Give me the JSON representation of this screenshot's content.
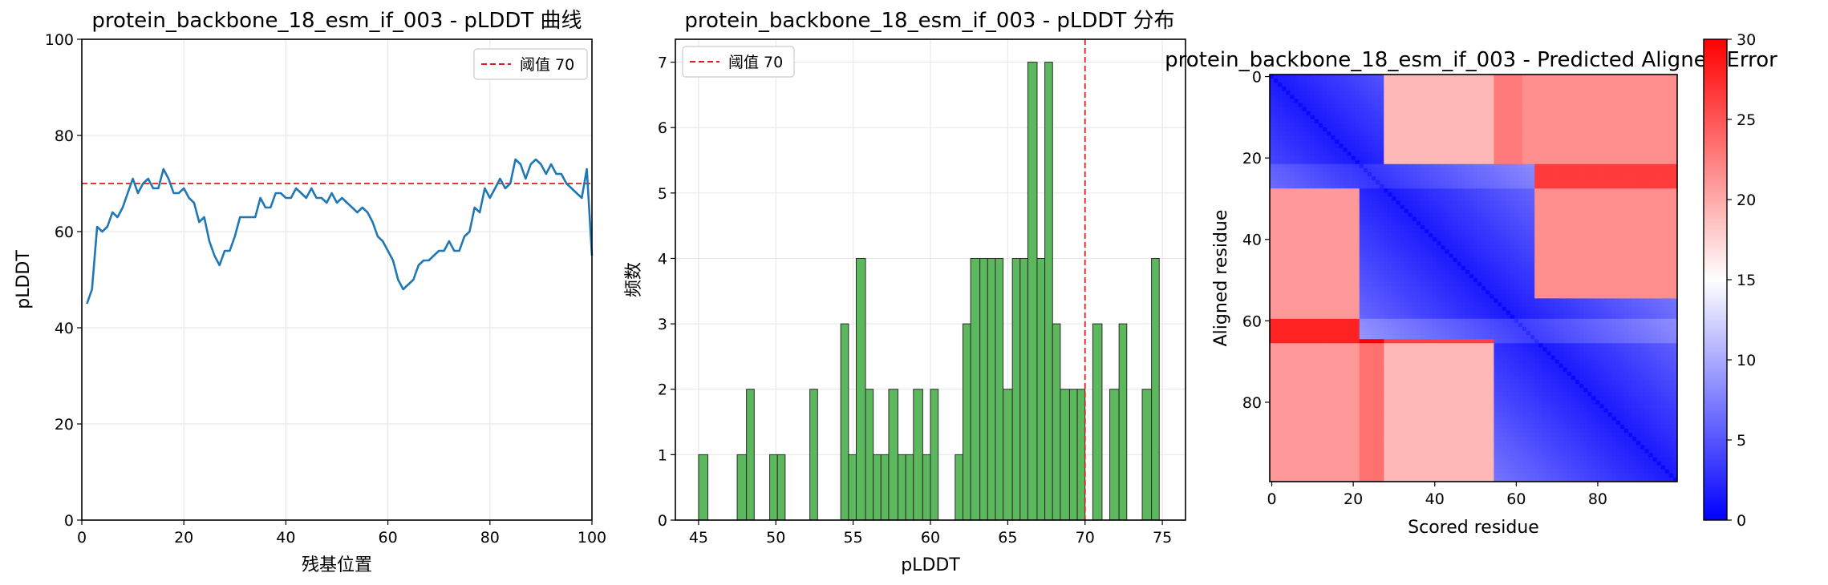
{
  "chart_data": [
    {
      "type": "line",
      "title": "protein_backbone_18_esm_if_003 - pLDDT 曲线",
      "xlabel": "残基位置",
      "ylabel": "pLDDT",
      "xlim": [
        0,
        100
      ],
      "ylim": [
        0,
        100
      ],
      "xticks": [
        0,
        20,
        40,
        60,
        80,
        100
      ],
      "yticks": [
        0,
        20,
        40,
        60,
        80,
        100
      ],
      "grid": true,
      "legend_placement": "top-right",
      "series": [
        {
          "name": "",
          "color": "#1f77b4",
          "x": [
            1,
            2,
            3,
            4,
            5,
            6,
            7,
            8,
            9,
            10,
            11,
            12,
            13,
            14,
            15,
            16,
            17,
            18,
            19,
            20,
            21,
            22,
            23,
            24,
            25,
            26,
            27,
            28,
            29,
            30,
            31,
            32,
            33,
            34,
            35,
            36,
            37,
            38,
            39,
            40,
            41,
            42,
            43,
            44,
            45,
            46,
            47,
            48,
            49,
            50,
            51,
            52,
            53,
            54,
            55,
            56,
            57,
            58,
            59,
            60,
            61,
            62,
            63,
            64,
            65,
            66,
            67,
            68,
            69,
            70,
            71,
            72,
            73,
            74,
            75,
            76,
            77,
            78,
            79,
            80,
            81,
            82,
            83,
            84,
            85,
            86,
            87,
            88,
            89,
            90,
            91,
            92,
            93,
            94,
            95,
            96,
            97,
            98,
            99,
            100
          ],
          "y": [
            45,
            48,
            61,
            60,
            61,
            64,
            63,
            65,
            68,
            71,
            68,
            70,
            71,
            69,
            69,
            73,
            71,
            68,
            68,
            69,
            67,
            66,
            62,
            63,
            58,
            55,
            53,
            56,
            56,
            59,
            63,
            63,
            63,
            63,
            67,
            65,
            65,
            68,
            68,
            67,
            67,
            69,
            68,
            67,
            69,
            67,
            67,
            66,
            68,
            66,
            67,
            66,
            65,
            64,
            65,
            64,
            62,
            59,
            58,
            56,
            54,
            50,
            48,
            49,
            50,
            53,
            54,
            54,
            55,
            56,
            56,
            58,
            56,
            56,
            59,
            60,
            65,
            64,
            69,
            67,
            69,
            71,
            69,
            70,
            75,
            74,
            71,
            74,
            75,
            74,
            72,
            74,
            72,
            72,
            70,
            69,
            68,
            67,
            73,
            55
          ]
        }
      ],
      "reference_line": {
        "label": "阈值 70",
        "y": 70,
        "color": "#e31a1c",
        "style": "dashed"
      }
    },
    {
      "type": "bar",
      "title": "protein_backbone_18_esm_if_003 - pLDDT 分布",
      "xlabel": "pLDDT",
      "ylabel": "频数",
      "xlim": [
        43.5,
        76.5
      ],
      "ylim": [
        0,
        7.35
      ],
      "xticks": [
        45,
        50,
        55,
        60,
        65,
        70,
        75
      ],
      "yticks": [
        0,
        1,
        2,
        3,
        4,
        5,
        6,
        7
      ],
      "grid": true,
      "legend_placement": "top-left",
      "bar_color": "#5cb85c",
      "bins": [
        {
          "x0": 45.0,
          "x1": 45.6,
          "count": 1
        },
        {
          "x0": 47.5,
          "x1": 48.1,
          "count": 1
        },
        {
          "x0": 48.1,
          "x1": 48.6,
          "count": 2
        },
        {
          "x0": 49.6,
          "x1": 50.1,
          "count": 1
        },
        {
          "x0": 50.1,
          "x1": 50.6,
          "count": 1
        },
        {
          "x0": 52.2,
          "x1": 52.7,
          "count": 2
        },
        {
          "x0": 54.2,
          "x1": 54.7,
          "count": 3
        },
        {
          "x0": 54.7,
          "x1": 55.2,
          "count": 1
        },
        {
          "x0": 55.2,
          "x1": 55.8,
          "count": 4
        },
        {
          "x0": 55.8,
          "x1": 56.3,
          "count": 2
        },
        {
          "x0": 56.3,
          "x1": 56.8,
          "count": 1
        },
        {
          "x0": 56.8,
          "x1": 57.3,
          "count": 1
        },
        {
          "x0": 57.3,
          "x1": 57.9,
          "count": 2
        },
        {
          "x0": 57.9,
          "x1": 58.4,
          "count": 1
        },
        {
          "x0": 58.4,
          "x1": 58.9,
          "count": 1
        },
        {
          "x0": 58.9,
          "x1": 59.5,
          "count": 2
        },
        {
          "x0": 59.5,
          "x1": 60.0,
          "count": 1
        },
        {
          "x0": 60.0,
          "x1": 60.5,
          "count": 2
        },
        {
          "x0": 61.6,
          "x1": 62.1,
          "count": 1
        },
        {
          "x0": 62.1,
          "x1": 62.6,
          "count": 3
        },
        {
          "x0": 62.6,
          "x1": 63.2,
          "count": 4
        },
        {
          "x0": 63.2,
          "x1": 63.7,
          "count": 4
        },
        {
          "x0": 63.7,
          "x1": 64.2,
          "count": 4
        },
        {
          "x0": 64.2,
          "x1": 64.7,
          "count": 4
        },
        {
          "x0": 64.7,
          "x1": 65.3,
          "count": 2
        },
        {
          "x0": 65.3,
          "x1": 65.8,
          "count": 4
        },
        {
          "x0": 65.8,
          "x1": 66.3,
          "count": 4
        },
        {
          "x0": 66.3,
          "x1": 66.9,
          "count": 7
        },
        {
          "x0": 66.9,
          "x1": 67.4,
          "count": 4
        },
        {
          "x0": 67.4,
          "x1": 67.9,
          "count": 7
        },
        {
          "x0": 67.9,
          "x1": 68.4,
          "count": 3
        },
        {
          "x0": 68.4,
          "x1": 69.0,
          "count": 2
        },
        {
          "x0": 69.0,
          "x1": 69.5,
          "count": 2
        },
        {
          "x0": 69.5,
          "x1": 70.0,
          "count": 2
        },
        {
          "x0": 70.5,
          "x1": 71.1,
          "count": 3
        },
        {
          "x0": 71.6,
          "x1": 72.2,
          "count": 2
        },
        {
          "x0": 72.2,
          "x1": 72.7,
          "count": 3
        },
        {
          "x0": 73.7,
          "x1": 74.3,
          "count": 2
        },
        {
          "x0": 74.3,
          "x1": 74.8,
          "count": 4
        }
      ],
      "reference_line": {
        "label": "阈值 70",
        "x": 70,
        "color": "#e31a1c",
        "style": "dashed"
      }
    },
    {
      "type": "heatmap",
      "title": "protein_backbone_18_esm_if_003 - Predicted Aligned Error",
      "xlabel": "Scored residue",
      "ylabel": "Aligned residue",
      "size": 100,
      "xticks": [
        0,
        20,
        40,
        60,
        80
      ],
      "yticks": [
        0,
        20,
        40,
        60,
        80
      ],
      "colormap": "bwr",
      "color_range": [
        0,
        30
      ],
      "colorbar_ticks": [
        0,
        5,
        10,
        15,
        20,
        25,
        30
      ],
      "row_offsets": [
        [
          0,
          22,
          0
        ],
        [
          22,
          28,
          10
        ],
        [
          28,
          60,
          0
        ],
        [
          60,
          66,
          14
        ],
        [
          66,
          100,
          0
        ]
      ],
      "column_offsets": [
        [
          0,
          22,
          0
        ],
        [
          22,
          28,
          4
        ],
        [
          28,
          55,
          -3
        ],
        [
          55,
          62,
          3
        ],
        [
          62,
          100,
          1
        ]
      ],
      "domains": [
        [
          0,
          28
        ],
        [
          22,
          65
        ],
        [
          55,
          100
        ]
      ]
    }
  ]
}
